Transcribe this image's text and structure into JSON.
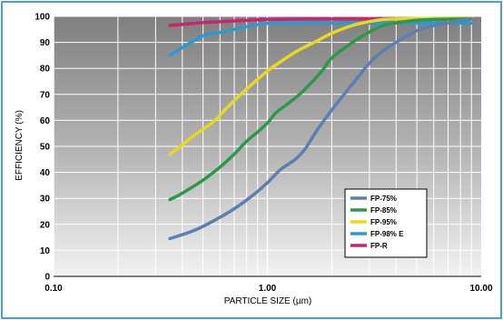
{
  "chart_data": {
    "type": "line",
    "xlabel": "PARTICLE SIZE (µm)",
    "ylabel": "EFFICIENCY (%)",
    "x_scale": "log",
    "xlim": [
      0.1,
      10
    ],
    "ylim": [
      0,
      100
    ],
    "x_ticks": [
      "0.10",
      "1.00",
      "10.00"
    ],
    "y_ticks": [
      "0",
      "10",
      "20",
      "30",
      "40",
      "50",
      "60",
      "70",
      "80",
      "90",
      "100"
    ],
    "grid": true,
    "legend_position": "bottom-right",
    "series": [
      {
        "name": "FP-75%",
        "color": "#5b7fb0",
        "x": [
          0.35,
          0.45,
          0.55,
          0.7,
          0.85,
          1.0,
          1.15,
          1.35,
          1.5,
          1.7,
          2.0,
          2.5,
          3.0,
          3.5,
          4.0,
          5.0,
          6.0,
          7.0,
          8.0,
          9.0
        ],
        "y": [
          14.5,
          17.5,
          21,
          26,
          31,
          36,
          41,
          45,
          49,
          56,
          64,
          74,
          82,
          87,
          90,
          94.5,
          96.5,
          97.5,
          98.5,
          99
        ]
      },
      {
        "name": "FP-85%",
        "color": "#2a9a48",
        "x": [
          0.35,
          0.4,
          0.5,
          0.6,
          0.7,
          0.8,
          0.9,
          1.0,
          1.1,
          1.3,
          1.5,
          1.8,
          2.0,
          2.5,
          3.0,
          3.5,
          4.0,
          5.0,
          6.0,
          8.0,
          9.0
        ],
        "y": [
          29.5,
          32,
          37,
          42,
          47,
          52,
          55.5,
          59,
          63,
          67.5,
          72,
          79,
          84,
          90,
          94,
          96.5,
          97.5,
          98.5,
          98.8,
          99,
          99
        ]
      },
      {
        "name": "FP-95%",
        "color": "#e8d81e",
        "x": [
          0.35,
          0.4,
          0.45,
          0.55,
          0.65,
          0.75,
          0.85,
          1.0,
          1.2,
          1.4,
          1.7,
          2.0,
          2.5,
          3.0,
          3.5,
          4.0,
          5.0,
          7.0,
          9.0
        ],
        "y": [
          47,
          50.5,
          54,
          59,
          65,
          70,
          74,
          79,
          83.5,
          87,
          90.5,
          93.5,
          96.5,
          98,
          98.8,
          99,
          99.2,
          99.3,
          99.4
        ]
      },
      {
        "name": "FP-98% E",
        "color": "#2b9ad4",
        "x": [
          0.35,
          0.4,
          0.45,
          0.5,
          0.55,
          0.6,
          0.7,
          0.8,
          0.9,
          1.0,
          1.5,
          2.0,
          3.0,
          5.0,
          9.0
        ],
        "y": [
          85,
          88,
          90.5,
          92.5,
          93.5,
          93.8,
          95,
          96,
          96.8,
          97.3,
          97.5,
          97.5,
          97.5,
          97.5,
          97.5
        ]
      },
      {
        "name": "FP-R",
        "color": "#c8256e",
        "x": [
          0.35,
          0.45,
          0.55,
          0.7,
          1.0,
          1.5,
          2.0,
          3.0,
          5.0,
          9.0
        ],
        "y": [
          96.5,
          97.3,
          97.8,
          98.2,
          98.8,
          99,
          99,
          99,
          99,
          99
        ]
      }
    ]
  }
}
